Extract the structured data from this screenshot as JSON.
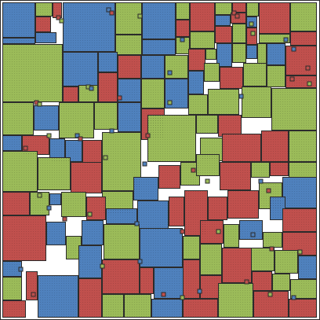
{
  "palette": {
    "red": "#c0504d",
    "green": "#9bbb59",
    "blue": "#4f81bd",
    "border": "#2b2b2b",
    "background": "#ffffff"
  },
  "legend": []
}
